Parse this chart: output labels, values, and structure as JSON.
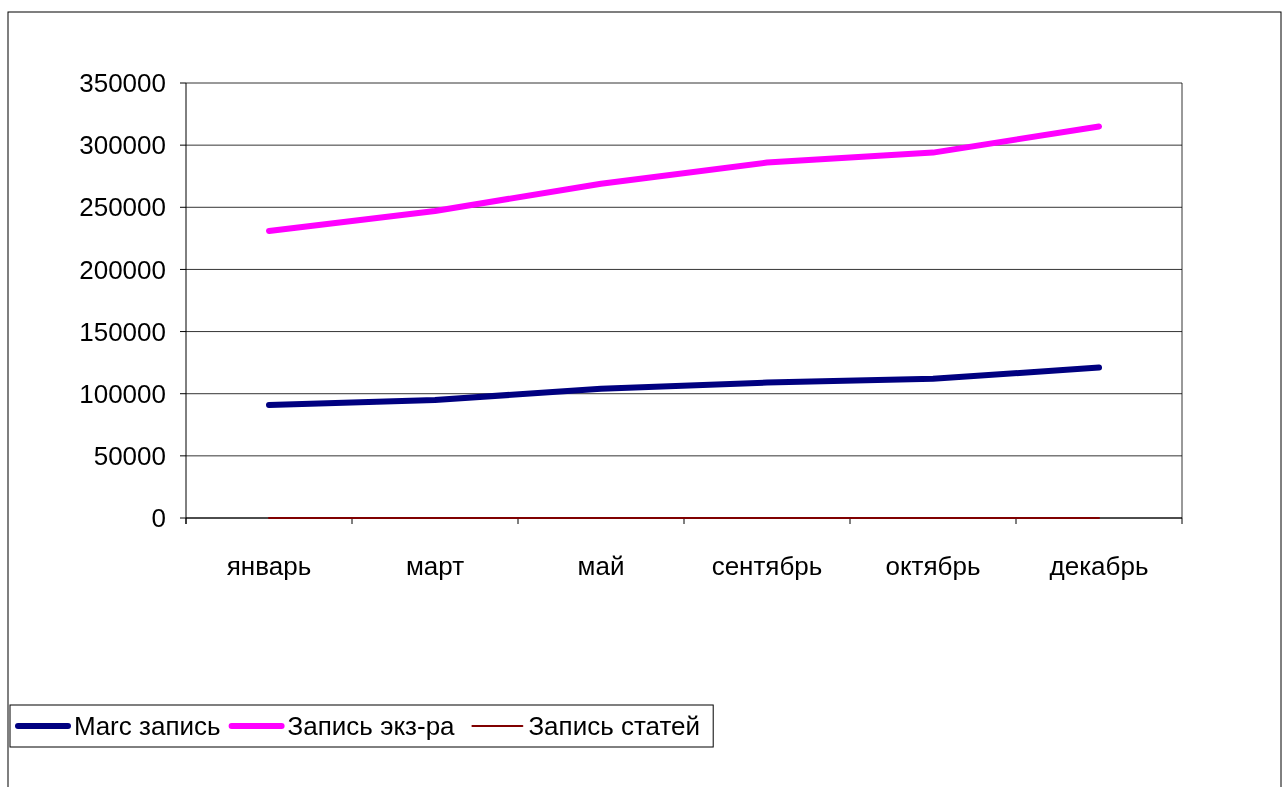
{
  "chart_data": {
    "type": "line",
    "categories": [
      "январь",
      "март",
      "май",
      "сентябрь",
      "октябрь",
      "декабрь"
    ],
    "series": [
      {
        "name": "Marc запись",
        "color": "#000080",
        "values": [
          91000,
          95000,
          104000,
          109000,
          112000,
          121000
        ]
      },
      {
        "name": "Запись экз-ра",
        "color": "#ff00ff",
        "values": [
          231000,
          247000,
          269000,
          286000,
          294000,
          315000
        ]
      },
      {
        "name": "Запись статей",
        "color": "#800000",
        "values": [
          0,
          0,
          0,
          0,
          0,
          0
        ]
      }
    ],
    "ylim": [
      0,
      350000
    ],
    "yticks": [
      0,
      50000,
      100000,
      150000,
      200000,
      250000,
      300000,
      350000
    ],
    "grid": "y",
    "legend": "bottom left",
    "line_style": "solid"
  }
}
